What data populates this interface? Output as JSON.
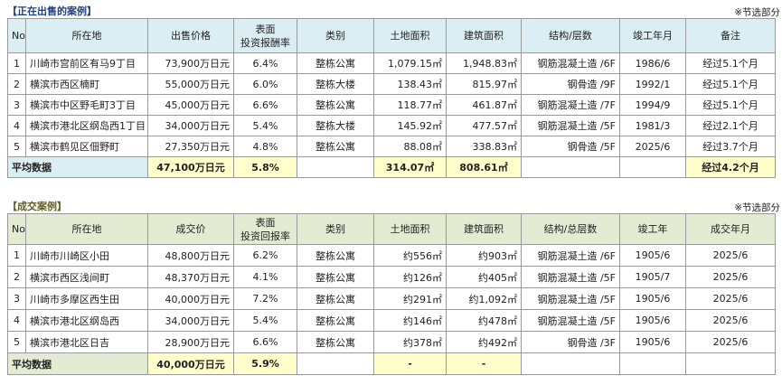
{
  "sale": {
    "title": "【正在出售的案例】",
    "note": "※节选部分",
    "headers": [
      "No",
      "所在地",
      "出售价格",
      "表面\n投资报酬率",
      "类别",
      "土地面积",
      "建筑面积",
      "结构/层数",
      "竣工年月",
      "备注"
    ],
    "rows": [
      [
        "1",
        "川崎市宫前区有马9丁目",
        "73,900万日元",
        "6.4%",
        "整栋公寓",
        "1,079.15㎡",
        "1,948.83㎡",
        "钢筋混凝土造 /6F",
        "1986/6",
        "经过5.1个月"
      ],
      [
        "2",
        "横滨市西区楠町",
        "55,000万日元",
        "6.0%",
        "整栋大楼",
        "138.43㎡",
        "815.97㎡",
        "钢骨造 /9F",
        "1992/1",
        "经过5.1个月"
      ],
      [
        "3",
        "横滨市中区野毛町3丁目",
        "45,000万日元",
        "6.6%",
        "整栋公寓",
        "118.77㎡",
        "461.87㎡",
        "钢筋混凝土造 /7F",
        "1994/9",
        "经过5.1个月"
      ],
      [
        "4",
        "横滨市港北区纲岛西1丁目",
        "34,000万日元",
        "5.4%",
        "整栋大楼",
        "145.92㎡",
        "477.57㎡",
        "钢筋混凝土造 /5F",
        "1981/3",
        "经过2.1个月"
      ],
      [
        "5",
        "横滨市鹤见区佃野町",
        "27,350万日元",
        "4.8%",
        "整栋公寓",
        "88.08㎡",
        "338.83㎡",
        "钢骨造 /5F",
        "2025/6",
        "经过3.7个月"
      ]
    ],
    "average": {
      "label": "平均数据",
      "price": "47,100万日元",
      "yield": "5.8%",
      "land_area": "314.07㎡",
      "building_area": "808.61㎡",
      "note": "经过4.2个月"
    }
  },
  "closed": {
    "title": "【成交案例】",
    "note": "※节选部分",
    "headers": [
      "No",
      "所在地",
      "成交价",
      "表面\n投资回报率",
      "类别",
      "土地面积",
      "建筑面积",
      "结构/总层数",
      "竣工年",
      "成交年月"
    ],
    "rows": [
      [
        "1",
        "川崎市川崎区小田",
        "48,800万日元",
        "6.2%",
        "整栋公寓",
        "约556㎡",
        "约903㎡",
        "钢筋混凝土造 /6F",
        "1905/6",
        "2025/6"
      ],
      [
        "2",
        "横滨市西区浅间町",
        "48,370万日元",
        "4.1%",
        "整栋公寓",
        "约126㎡",
        "约405㎡",
        "钢筋混凝土造 /5F",
        "1905/7",
        "2025/6"
      ],
      [
        "3",
        "川崎市多摩区西生田",
        "40,000万日元",
        "7.2%",
        "整栋公寓",
        "约291㎡",
        "约1,092㎡",
        "钢筋混凝土造 /5F",
        "1905/6",
        "2025/6"
      ],
      [
        "4",
        "横滨市港北区纲岛西",
        "34,000万日元",
        "5.4%",
        "整栋公寓",
        "约146㎡",
        "约478㎡",
        "钢筋混凝土造 /5F",
        "1905/6",
        "2025/6"
      ],
      [
        "5",
        "横滨市港北区日吉",
        "28,900万日元",
        "6.6%",
        "整栋公寓",
        "约378㎡",
        "约492㎡",
        "钢骨造 /3F",
        "1905/6",
        "2025/6"
      ]
    ],
    "average": {
      "label": "平均数据",
      "price": "40,000万日元",
      "yield": "5.9%",
      "land_area": "-",
      "building_area": "-"
    }
  }
}
